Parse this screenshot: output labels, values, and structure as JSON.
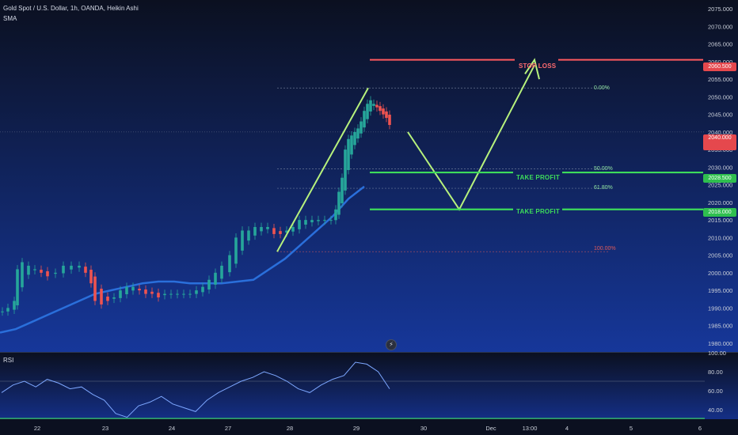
{
  "header": {
    "symbol_line": "Gold Spot / U.S. Dollar, 1h, OANDA, Heikin Ashi",
    "indicator": "SMA"
  },
  "rsi_pane": {
    "label": "RSI"
  },
  "colors": {
    "background_top": "#0b1020",
    "background_bottom": "#16379a",
    "bull": "#26a69a",
    "bear": "#ef5350",
    "sma": "#2a6fdb",
    "drawing_arrow": "#b7f27c",
    "stop_loss": "#ff5a5f",
    "take_profit": "#3ddc5b",
    "fib_green": "#8fe0a0",
    "fib_red": "#e05a5a"
  },
  "price_axis": {
    "ticks": [
      "2075.000",
      "2070.000",
      "2065.000",
      "2060.000",
      "2055.000",
      "2050.000",
      "2045.000",
      "2040.000",
      "2035.000",
      "2030.000",
      "2025.000",
      "2020.000",
      "2015.000",
      "2010.000",
      "2005.000",
      "2000.000",
      "1995.000",
      "1990.000",
      "1985.000",
      "1980.000"
    ]
  },
  "rsi_axis": {
    "ticks": [
      "100.00",
      "80.00",
      "60.00",
      "40.00"
    ]
  },
  "time_axis": {
    "ticks": [
      "22",
      "23",
      "24",
      "27",
      "28",
      "29",
      "30",
      "Dec",
      "13:00",
      "4",
      "5",
      "6"
    ]
  },
  "annotations": {
    "stop_loss": {
      "label": "STOP LOSS",
      "price": 2060.5
    },
    "take_profit_1": {
      "label": "TAKE PROFIT",
      "price": 2028.5
    },
    "take_profit_2": {
      "label": "TAKE PROFIT",
      "price": 2018.0
    },
    "fib_levels": [
      {
        "label": "0.00%",
        "price": 2052.5
      },
      {
        "label": "50.00%",
        "price": 2029.5
      },
      {
        "label": "61.80%",
        "price": 2024.0
      },
      {
        "label": "100.00%",
        "price": 2006.0
      }
    ]
  },
  "price_badges": {
    "stop_loss": "2060.500",
    "current": "2040.000",
    "take_profit_1": "2028.500",
    "take_profit_2": "2018.000"
  },
  "chart_data": {
    "type": "candlestick",
    "series": [
      {
        "name": "SMA",
        "values": [
          1983,
          1984,
          1986,
          1988,
          1990,
          1992,
          1994,
          1995,
          1996,
          1997,
          1997.5,
          1997.5,
          1997,
          1997,
          1997,
          1997.5,
          1998,
          2001,
          2004,
          2008,
          2012,
          2016,
          2021,
          2024.5
        ]
      }
    ],
    "ylim": [
      1978,
      2078
    ],
    "rsi": {
      "ylim": [
        30,
        100
      ],
      "levels": [
        70,
        30
      ],
      "values": [
        58,
        66,
        70,
        64,
        72,
        68,
        62,
        64,
        56,
        50,
        36,
        32,
        44,
        48,
        54,
        46,
        42,
        38,
        50,
        58,
        64,
        70,
        74,
        80,
        76,
        70,
        62,
        58,
        66,
        72,
        76,
        90,
        88,
        80,
        62
      ]
    }
  }
}
